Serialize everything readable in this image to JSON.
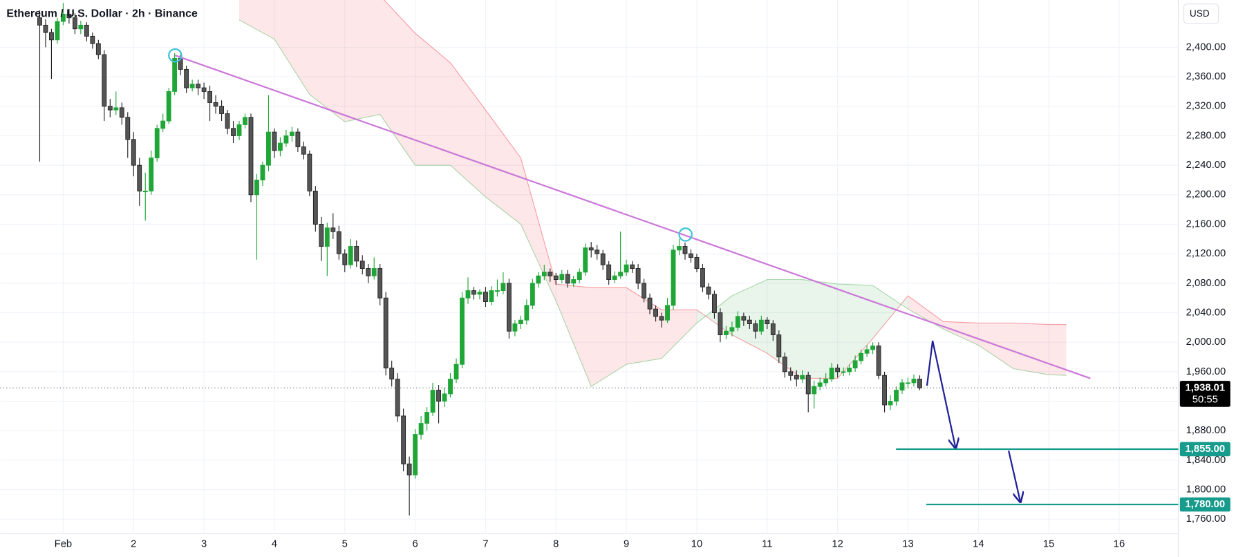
{
  "chart_data": {
    "type": "candlestick",
    "title": "Ethereum / U.S. Dollar · 2h · Binance",
    "currency": "USD",
    "xlim": [
      0.1045,
      16.84
    ],
    "ylim": [
      1740.8,
      2464.1
    ],
    "xticks": [
      {
        "value": 1,
        "label": "Feb"
      },
      2,
      3,
      4,
      5,
      6,
      7,
      8,
      9,
      10,
      11,
      12,
      13,
      14,
      15,
      16
    ],
    "yticks": [
      {
        "value": 1760,
        "label": "1,760.00"
      },
      {
        "value": 1800,
        "label": "1,800.00"
      },
      {
        "value": 1840,
        "label": "1,840.00"
      },
      {
        "value": 1880,
        "label": "1,880.00"
      },
      {
        "value": 1920,
        "label": "1,920.00"
      },
      {
        "value": 1960,
        "label": "1,960.00"
      },
      {
        "value": 2000,
        "label": "2,000.00"
      },
      {
        "value": 2040,
        "label": "2,040.00"
      },
      {
        "value": 2080,
        "label": "2,080.00"
      },
      {
        "value": 2120,
        "label": "2,120.00"
      },
      {
        "value": 2160,
        "label": "2,160.00"
      },
      {
        "value": 2200,
        "label": "2,200.00"
      },
      {
        "value": 2240,
        "label": "2,240.00"
      },
      {
        "value": 2280,
        "label": "2,280.00"
      },
      {
        "value": 2320,
        "label": "2,320.00"
      },
      {
        "value": 2360,
        "label": "2,360.00"
      },
      {
        "value": 2400,
        "label": "2,400.00"
      }
    ],
    "grid": true,
    "up_color": "#1fa637",
    "down_color": "#555555",
    "x": [
      0.6667,
      0.75,
      0.8333,
      0.9167,
      1,
      1.0833,
      1.1667,
      1.25,
      1.3333,
      1.4167,
      1.5,
      1.5833,
      1.6667,
      1.75,
      1.8333,
      1.9167,
      2,
      2.0833,
      2.1667,
      2.25,
      2.3333,
      2.4167,
      2.5,
      2.5833,
      2.6667,
      2.75,
      2.8333,
      2.9167,
      3,
      3.0833,
      3.1667,
      3.25,
      3.3333,
      3.4167,
      3.5,
      3.5833,
      3.6667,
      3.75,
      3.8333,
      3.9167,
      4,
      4.0833,
      4.1667,
      4.25,
      4.3333,
      4.4167,
      4.5,
      4.5833,
      4.6667,
      4.75,
      4.8333,
      4.9167,
      5,
      5.0833,
      5.1667,
      5.25,
      5.3333,
      5.4167,
      5.5,
      5.5833,
      5.6667,
      5.75,
      5.8333,
      5.9167,
      6,
      6.0833,
      6.1667,
      6.25,
      6.3333,
      6.4167,
      6.5,
      6.5833,
      6.6667,
      6.75,
      6.8333,
      6.9167,
      7,
      7.0833,
      7.1667,
      7.25,
      7.3333,
      7.4167,
      7.5,
      7.5833,
      7.6667,
      7.75,
      7.8333,
      7.9167,
      8,
      8.0833,
      8.1667,
      8.25,
      8.3333,
      8.4167,
      8.5,
      8.5833,
      8.6667,
      8.75,
      8.8333,
      8.9167,
      9,
      9.0833,
      9.1667,
      9.25,
      9.3333,
      9.4167,
      9.5,
      9.5833,
      9.6667,
      9.75,
      9.8333,
      9.9167,
      10,
      10.0833,
      10.1667,
      10.25,
      10.3333,
      10.4167,
      10.5,
      10.5833,
      10.6667,
      10.75,
      10.8333,
      10.9167,
      11,
      11.0833,
      11.1667,
      11.25,
      11.3333,
      11.4167,
      11.5,
      11.5833,
      11.6667,
      11.75,
      11.8333,
      11.9167,
      12,
      12.0833,
      12.1667,
      12.25,
      12.3333,
      12.4167,
      12.5,
      12.5833,
      12.6667,
      12.75,
      12.8333,
      12.9167,
      13,
      13.0833,
      13.1667
    ],
    "ohlc": [
      [
        2440,
        2450,
        2245,
        2430
      ],
      [
        2430,
        2438,
        2400,
        2420
      ],
      [
        2420,
        2425,
        2357,
        2410
      ],
      [
        2410,
        2440,
        2405,
        2435
      ],
      [
        2435,
        2460,
        2430,
        2445
      ],
      [
        2445,
        2452,
        2432,
        2440
      ],
      [
        2440,
        2446,
        2418,
        2425
      ],
      [
        2425,
        2436,
        2418,
        2430
      ],
      [
        2430,
        2434,
        2408,
        2415
      ],
      [
        2415,
        2420,
        2398,
        2405
      ],
      [
        2405,
        2410,
        2384,
        2390
      ],
      [
        2390,
        2396,
        2300,
        2320
      ],
      [
        2320,
        2330,
        2305,
        2315
      ],
      [
        2315,
        2340,
        2308,
        2318
      ],
      [
        2318,
        2325,
        2295,
        2305
      ],
      [
        2305,
        2312,
        2250,
        2275
      ],
      [
        2275,
        2285,
        2225,
        2240
      ],
      [
        2240,
        2250,
        2185,
        2205
      ],
      [
        2205,
        2230,
        2165,
        2205
      ],
      [
        2205,
        2260,
        2200,
        2250
      ],
      [
        2250,
        2295,
        2245,
        2290
      ],
      [
        2290,
        2310,
        2285,
        2300
      ],
      [
        2300,
        2345,
        2296,
        2340
      ],
      [
        2340,
        2392,
        2335,
        2385
      ],
      [
        2385,
        2390,
        2362,
        2370
      ],
      [
        2370,
        2375,
        2338,
        2345
      ],
      [
        2345,
        2356,
        2340,
        2350
      ],
      [
        2350,
        2356,
        2335,
        2345
      ],
      [
        2345,
        2352,
        2330,
        2340
      ],
      [
        2340,
        2348,
        2300,
        2325
      ],
      [
        2325,
        2335,
        2310,
        2320
      ],
      [
        2320,
        2328,
        2300,
        2310
      ],
      [
        2310,
        2315,
        2282,
        2290
      ],
      [
        2290,
        2300,
        2270,
        2280
      ],
      [
        2280,
        2300,
        2274,
        2295
      ],
      [
        2295,
        2310,
        2290,
        2305
      ],
      [
        2305,
        2310,
        2190,
        2200
      ],
      [
        2200,
        2228,
        2112,
        2220
      ],
      [
        2220,
        2245,
        2212,
        2240
      ],
      [
        2240,
        2335,
        2232,
        2285
      ],
      [
        2285,
        2290,
        2250,
        2260
      ],
      [
        2260,
        2278,
        2252,
        2270
      ],
      [
        2270,
        2288,
        2265,
        2280
      ],
      [
        2280,
        2292,
        2272,
        2285
      ],
      [
        2285,
        2290,
        2258,
        2265
      ],
      [
        2265,
        2272,
        2248,
        2255
      ],
      [
        2255,
        2260,
        2198,
        2205
      ],
      [
        2205,
        2212,
        2150,
        2160
      ],
      [
        2160,
        2170,
        2110,
        2130
      ],
      [
        2130,
        2162,
        2090,
        2155
      ],
      [
        2155,
        2175,
        2140,
        2150
      ],
      [
        2150,
        2158,
        2112,
        2120
      ],
      [
        2120,
        2126,
        2095,
        2105
      ],
      [
        2105,
        2140,
        2100,
        2130
      ],
      [
        2130,
        2138,
        2102,
        2110
      ],
      [
        2110,
        2118,
        2092,
        2100
      ],
      [
        2100,
        2106,
        2080,
        2090
      ],
      [
        2090,
        2115,
        2085,
        2100
      ],
      [
        2100,
        2106,
        2050,
        2060
      ],
      [
        2060,
        2068,
        1955,
        1965
      ],
      [
        1965,
        1975,
        1940,
        1950
      ],
      [
        1950,
        1958,
        1892,
        1900
      ],
      [
        1900,
        1910,
        1825,
        1835
      ],
      [
        1835,
        1845,
        1765,
        1820
      ],
      [
        1820,
        1882,
        1815,
        1875
      ],
      [
        1875,
        1900,
        1868,
        1890
      ],
      [
        1890,
        1912,
        1880,
        1905
      ],
      [
        1905,
        1945,
        1900,
        1935
      ],
      [
        1935,
        1942,
        1890,
        1920
      ],
      [
        1920,
        1938,
        1912,
        1930
      ],
      [
        1930,
        1958,
        1925,
        1950
      ],
      [
        1950,
        1978,
        1945,
        1970
      ],
      [
        1970,
        2068,
        1965,
        2060
      ],
      [
        2060,
        2088,
        2052,
        2070
      ],
      [
        2070,
        2075,
        2058,
        2065
      ],
      [
        2065,
        2072,
        2058,
        2068
      ],
      [
        2068,
        2075,
        2048,
        2055
      ],
      [
        2055,
        2076,
        2050,
        2070
      ],
      [
        2070,
        2085,
        2062,
        2070
      ],
      [
        2070,
        2095,
        2065,
        2080
      ],
      [
        2080,
        2086,
        2005,
        2015
      ],
      [
        2015,
        2030,
        2008,
        2025
      ],
      [
        2025,
        2036,
        2018,
        2030
      ],
      [
        2030,
        2058,
        2024,
        2050
      ],
      [
        2050,
        2086,
        2045,
        2080
      ],
      [
        2080,
        2095,
        2074,
        2090
      ],
      [
        2090,
        2105,
        2084,
        2095
      ],
      [
        2095,
        2100,
        2082,
        2090
      ],
      [
        2090,
        2094,
        2078,
        2085
      ],
      [
        2085,
        2098,
        2080,
        2092
      ],
      [
        2092,
        2098,
        2074,
        2080
      ],
      [
        2080,
        2090,
        2075,
        2085
      ],
      [
        2085,
        2100,
        2080,
        2095
      ],
      [
        2095,
        2134,
        2090,
        2128
      ],
      [
        2128,
        2136,
        2115,
        2125
      ],
      [
        2125,
        2132,
        2112,
        2120
      ],
      [
        2120,
        2125,
        2098,
        2105
      ],
      [
        2105,
        2110,
        2078,
        2085
      ],
      [
        2085,
        2096,
        2080,
        2090
      ],
      [
        2090,
        2150,
        2086,
        2095
      ],
      [
        2095,
        2112,
        2090,
        2105
      ],
      [
        2105,
        2110,
        2094,
        2100
      ],
      [
        2100,
        2106,
        2072,
        2080
      ],
      [
        2080,
        2086,
        2054,
        2060
      ],
      [
        2060,
        2066,
        2038,
        2045
      ],
      [
        2045,
        2050,
        2028,
        2035
      ],
      [
        2035,
        2040,
        2020,
        2030
      ],
      [
        2030,
        2060,
        2026,
        2050
      ],
      [
        2050,
        2132,
        2044,
        2125
      ],
      [
        2125,
        2140,
        2118,
        2130
      ],
      [
        2130,
        2135,
        2112,
        2120
      ],
      [
        2120,
        2126,
        2108,
        2115
      ],
      [
        2115,
        2120,
        2095,
        2100
      ],
      [
        2100,
        2106,
        2068,
        2075
      ],
      [
        2075,
        2080,
        2058,
        2065
      ],
      [
        2065,
        2070,
        2032,
        2040
      ],
      [
        2040,
        2046,
        2000,
        2010
      ],
      [
        2010,
        2022,
        2004,
        2015
      ],
      [
        2015,
        2028,
        2008,
        2020
      ],
      [
        2020,
        2042,
        2015,
        2035
      ],
      [
        2035,
        2040,
        2022,
        2030
      ],
      [
        2030,
        2036,
        2018,
        2025
      ],
      [
        2025,
        2030,
        2005,
        2015
      ],
      [
        2015,
        2036,
        2010,
        2030
      ],
      [
        2030,
        2034,
        2018,
        2025
      ],
      [
        2025,
        2030,
        2002,
        2010
      ],
      [
        2010,
        2016,
        1972,
        1980
      ],
      [
        1980,
        1986,
        1952,
        1960
      ],
      [
        1960,
        1966,
        1948,
        1955
      ],
      [
        1955,
        1962,
        1940,
        1950
      ],
      [
        1950,
        1962,
        1945,
        1955
      ],
      [
        1955,
        1960,
        1905,
        1930
      ],
      [
        1930,
        1948,
        1910,
        1940
      ],
      [
        1940,
        1952,
        1935,
        1945
      ],
      [
        1945,
        1958,
        1940,
        1950
      ],
      [
        1950,
        1972,
        1946,
        1965
      ],
      [
        1965,
        1970,
        1952,
        1960
      ],
      [
        1960,
        1966,
        1954,
        1960
      ],
      [
        1960,
        1970,
        1955,
        1965
      ],
      [
        1965,
        1982,
        1960,
        1975
      ],
      [
        1975,
        1990,
        1970,
        1985
      ],
      [
        1985,
        1996,
        1980,
        1990
      ],
      [
        1990,
        2000,
        1984,
        1995
      ],
      [
        1995,
        2000,
        1950,
        1955
      ],
      [
        1955,
        1960,
        1905,
        1915
      ],
      [
        1915,
        1928,
        1908,
        1920
      ],
      [
        1920,
        1940,
        1914,
        1935
      ],
      [
        1935,
        1950,
        1930,
        1945
      ],
      [
        1945,
        1952,
        1938,
        1945
      ],
      [
        1945,
        1956,
        1940,
        1950
      ],
      [
        1950,
        1955,
        1935,
        1938.01
      ]
    ],
    "cloud": {
      "x": [
        3.5,
        4,
        4.5,
        5,
        5.5,
        6,
        6.5,
        7,
        7.5,
        8,
        8.5,
        9,
        9.5,
        10,
        10.5,
        11,
        11.5,
        12,
        12.5,
        13,
        13.5,
        14,
        14.5,
        15,
        15.25
      ],
      "span_a": [
        2437,
        2411,
        2336,
        2299,
        2309,
        2240,
        2240,
        2197,
        2160,
        2056,
        1940,
        1970,
        1978,
        2026,
        2063,
        2085,
        2085,
        2079,
        2077,
        2045,
        2018,
        1996,
        1964,
        1956,
        1955
      ],
      "span_b": [
        2520,
        2520,
        2520,
        2500,
        2470,
        2419,
        2379,
        2315,
        2250,
        2079,
        2074,
        2074,
        2044,
        2044,
        2010,
        1985,
        1951,
        1951,
        2005,
        2063,
        2028,
        2026,
        2026,
        2024,
        2024
      ],
      "bull_color": "#4caf50",
      "bear_color": "#f23645"
    },
    "trendline": {
      "x": [
        2.59,
        15.59
      ],
      "y": [
        2389,
        1951
      ],
      "color": "#cc7ad9"
    },
    "touches": {
      "x": [
        2.59,
        9.84
      ],
      "y": [
        2389,
        2146
      ],
      "color": "#3fc3d6"
    },
    "projections": [
      {
        "x": [
          13.27,
          13.35,
          13.68
        ],
        "y": [
          1941,
          2002,
          1855
        ]
      },
      {
        "x": [
          14.43,
          14.6
        ],
        "y": [
          1853,
          1782
        ]
      }
    ],
    "projection_color": "#22229a",
    "levels": {
      "values": [
        1855,
        1780
      ],
      "value_labels": [
        "1,855.00",
        "1,780.00"
      ],
      "x": [
        12.83,
        13.26
      ],
      "color": "#179b8c"
    },
    "last": {
      "value": 1938.01,
      "label": "1,938.01",
      "countdown": "50:55"
    }
  }
}
